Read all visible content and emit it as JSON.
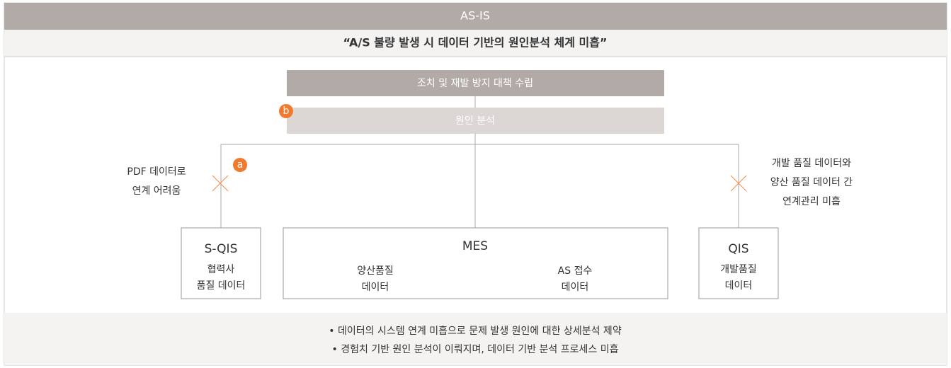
{
  "header": {
    "title": "AS-IS",
    "subtitle": "“A/S 불량 발생 시 데이터 기반의 원인분석 체계 미흡”"
  },
  "top_box": "조치 및 재발 방지 대책 수립",
  "second_box": "원인 분석",
  "markers": {
    "a": "a",
    "b": "b"
  },
  "notes": {
    "left": [
      "PDF 데이터로",
      "연계 어려움"
    ],
    "right": [
      "개발 품질 데이터와",
      "양산 품질 데이터 간",
      "연계관리 미흡"
    ]
  },
  "systems": [
    {
      "title": "S-QIS",
      "lines": [
        "협력사",
        "품질 데이터"
      ]
    },
    {
      "title": "MES",
      "left": [
        "양산품질",
        "데이터"
      ],
      "right": [
        "AS 접수",
        "데이터"
      ]
    },
    {
      "title": "QIS",
      "lines": [
        "개발품질",
        "데이터"
      ]
    }
  ],
  "footer": [
    "• 데이터의 시스템 연계 미흡으로 문제 발생 원인에 대한 상세분석 제약",
    "• 경험치 기반 원인 분석이 이뤄지며, 데이터 기반 분석 프로세스 미흡"
  ]
}
